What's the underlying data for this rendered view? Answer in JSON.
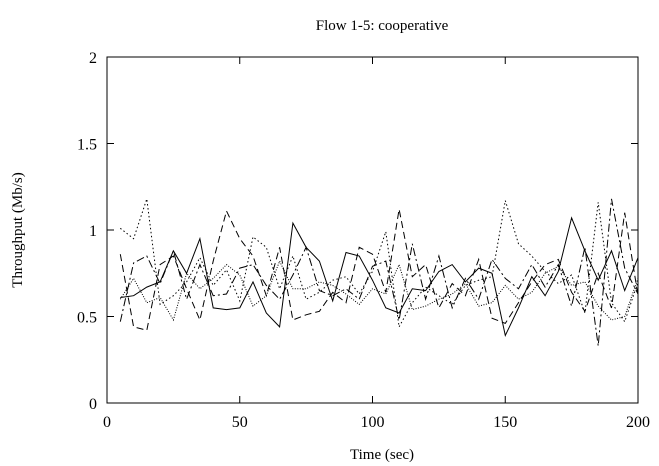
{
  "chart_data": {
    "type": "line",
    "title": "Flow 1-5: cooperative",
    "xlabel": "Time (sec)",
    "ylabel": "Throughput (Mb/s)",
    "xlim": [
      0,
      200
    ],
    "ylim": [
      0,
      2
    ],
    "x_ticks": [
      0,
      50,
      100,
      150,
      200
    ],
    "y_ticks": [
      0,
      0.5,
      1,
      1.5,
      2
    ],
    "x_tick_labels": [
      "0",
      "50",
      "100",
      "150",
      "200"
    ],
    "y_tick_labels": [
      "0",
      "0.5",
      "1",
      "1.5",
      "2"
    ],
    "grid": false,
    "legend": "none",
    "x": [
      5,
      10,
      15,
      20,
      25,
      30,
      35,
      40,
      45,
      50,
      55,
      60,
      65,
      70,
      75,
      80,
      85,
      90,
      95,
      100,
      105,
      110,
      115,
      120,
      125,
      130,
      135,
      140,
      145,
      150,
      155,
      160,
      165,
      170,
      175,
      180,
      185,
      190,
      195,
      200
    ],
    "series": [
      {
        "style": "solid",
        "values": [
          0.61,
          0.62,
          0.67,
          0.7,
          0.88,
          0.75,
          0.95,
          0.55,
          0.54,
          0.55,
          0.7,
          0.52,
          0.44,
          1.04,
          0.9,
          0.82,
          0.59,
          0.87,
          0.85,
          0.71,
          0.55,
          0.52,
          0.66,
          0.65,
          0.76,
          0.8,
          0.7,
          0.78,
          0.75,
          0.39,
          0.55,
          0.73,
          0.62,
          0.76,
          1.07,
          0.88,
          0.71,
          0.88,
          0.65,
          0.84
        ]
      },
      {
        "style": "dashed",
        "values": [
          0.86,
          0.44,
          0.42,
          0.8,
          0.85,
          0.66,
          0.48,
          0.82,
          1.11,
          0.95,
          0.85,
          0.62,
          0.9,
          0.48,
          0.51,
          0.53,
          0.64,
          0.58,
          0.9,
          0.86,
          0.64,
          1.12,
          0.73,
          0.8,
          0.55,
          0.69,
          0.62,
          0.83,
          0.49,
          0.46,
          0.58,
          0.7,
          0.8,
          0.83,
          0.64,
          0.53,
          0.75,
          0.55,
          1.1,
          0.62
        ]
      },
      {
        "style": "dotted",
        "values": [
          1.01,
          0.95,
          1.18,
          0.57,
          0.62,
          0.7,
          0.84,
          0.68,
          0.77,
          0.59,
          0.96,
          0.9,
          0.66,
          0.85,
          0.6,
          0.64,
          0.71,
          0.73,
          0.63,
          0.76,
          0.99,
          0.44,
          0.58,
          0.67,
          0.62,
          0.57,
          0.68,
          0.71,
          0.73,
          1.17,
          0.92,
          0.85,
          0.76,
          0.69,
          0.74,
          0.52,
          1.16,
          0.58,
          0.47,
          0.7
        ]
      },
      {
        "style": "dashdot",
        "values": [
          0.47,
          0.81,
          0.85,
          0.69,
          0.88,
          0.6,
          0.8,
          0.62,
          0.63,
          0.78,
          0.8,
          0.68,
          0.6,
          0.74,
          0.9,
          0.65,
          0.62,
          0.66,
          0.6,
          0.79,
          0.82,
          0.48,
          0.92,
          0.6,
          0.85,
          0.55,
          0.72,
          0.6,
          0.83,
          0.72,
          0.66,
          0.8,
          0.67,
          0.8,
          0.56,
          0.9,
          0.33,
          1.18,
          0.78,
          0.63
        ]
      },
      {
        "style": "fine-dotted",
        "values": [
          0.6,
          0.72,
          0.58,
          0.61,
          0.48,
          0.75,
          0.66,
          0.72,
          0.8,
          0.74,
          0.56,
          0.62,
          0.82,
          0.66,
          0.66,
          0.7,
          0.68,
          0.63,
          0.57,
          0.66,
          0.63,
          0.8,
          0.54,
          0.56,
          0.6,
          0.63,
          0.69,
          0.56,
          0.58,
          0.68,
          0.6,
          0.64,
          0.75,
          0.79,
          0.68,
          0.7,
          0.56,
          0.48,
          0.5,
          0.72
        ]
      }
    ]
  }
}
